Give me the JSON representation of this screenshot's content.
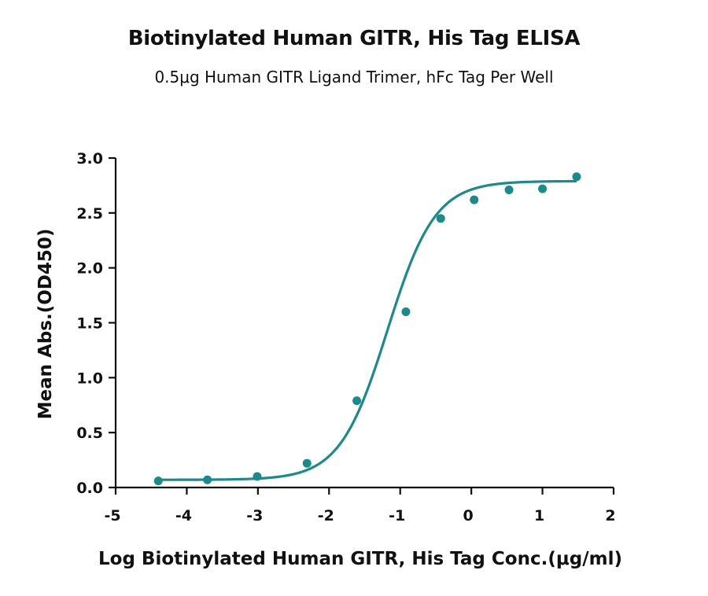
{
  "chart_data": {
    "type": "scatter",
    "title": "Biotinylated Human GITR, His Tag ELISA",
    "subtitle": "0.5μg Human GITR Ligand Trimer, hFc Tag Per Well",
    "xlabel": "Log Biotinylated Human GITR, His Tag Conc.(μg/ml)",
    "ylabel": "Mean Abs.(OD450)",
    "xlim": [
      -5,
      2
    ],
    "ylim": [
      0,
      3.0
    ],
    "xticks": [
      "-5",
      "-4",
      "-3",
      "-2",
      "-1",
      "0",
      "1",
      "2"
    ],
    "yticks": [
      "0.0",
      "0.5",
      "1.0",
      "1.5",
      "2.0",
      "2.5",
      "3.0"
    ],
    "grid": false,
    "color": "#1a8a8a",
    "series": [
      {
        "points": [
          {
            "x": -4.4,
            "y": 0.06
          },
          {
            "x": -3.71,
            "y": 0.07
          },
          {
            "x": -3.01,
            "y": 0.1
          },
          {
            "x": -2.31,
            "y": 0.22
          },
          {
            "x": -1.61,
            "y": 0.79
          },
          {
            "x": -0.92,
            "y": 1.6
          },
          {
            "x": -0.43,
            "y": 2.45
          },
          {
            "x": 0.04,
            "y": 2.62
          },
          {
            "x": 0.53,
            "y": 2.71
          },
          {
            "x": 1.0,
            "y": 2.72
          },
          {
            "x": 1.48,
            "y": 2.83
          }
        ],
        "fit": {
          "model": "4PL",
          "bottom": 0.07,
          "top": 2.79,
          "logEC50": -1.18,
          "hill": 1.3
        }
      }
    ]
  }
}
